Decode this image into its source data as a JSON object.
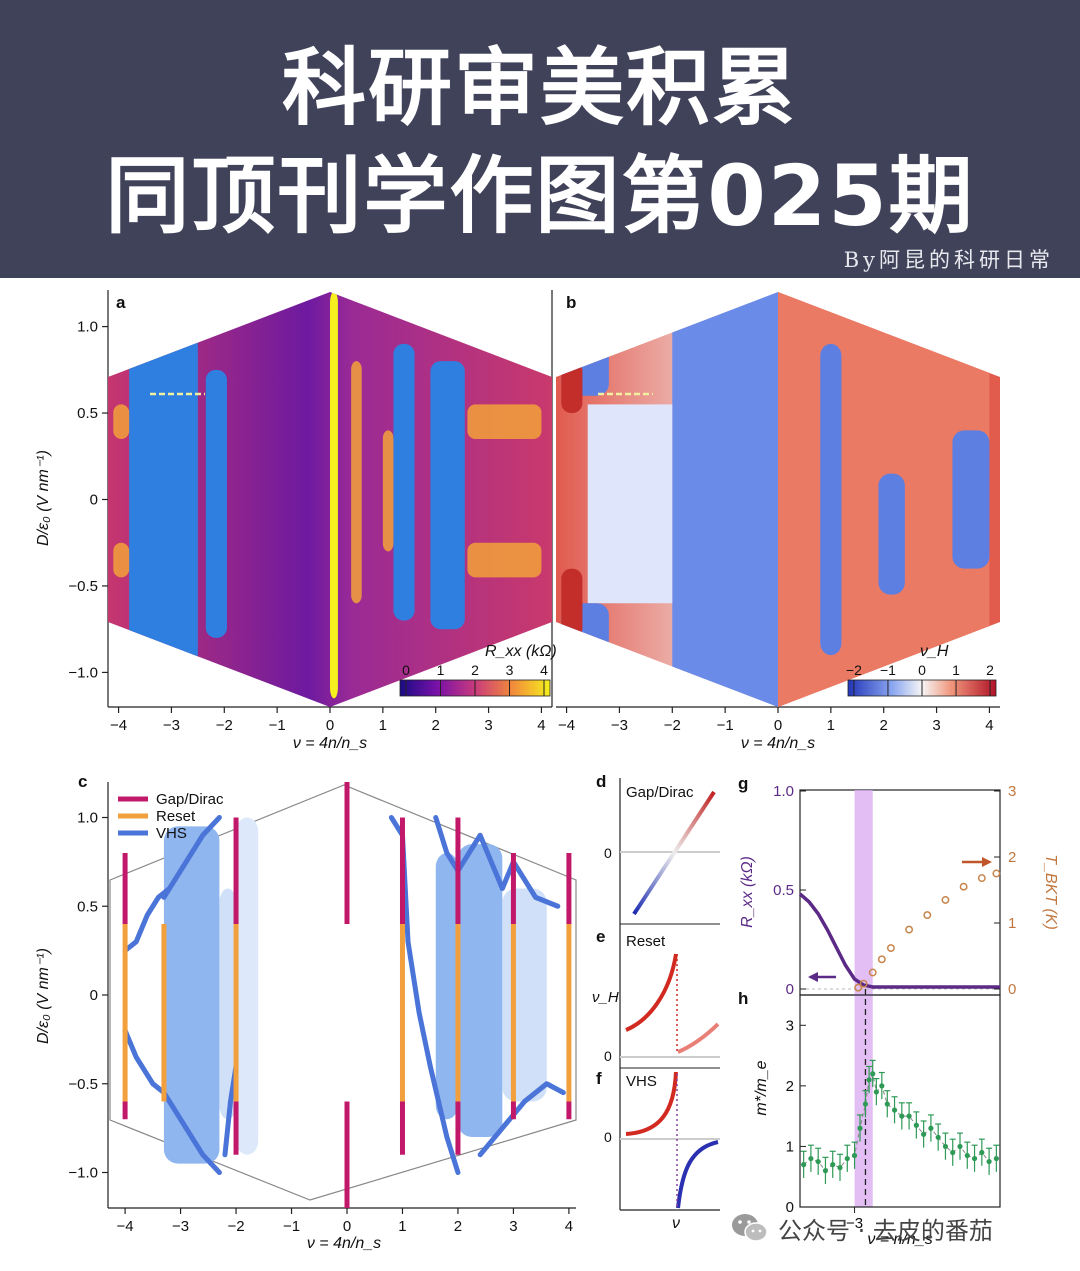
{
  "header": {
    "title_line1": "科研审美积累",
    "title_line2": "同顶刊学作图第025期",
    "byline": "By阿昆的科研日常",
    "bg_color": "#3f4259"
  },
  "watermark": {
    "text": "公众号 · 去皮的番茄",
    "icon": "wechat-icon"
  },
  "chart_data": [
    {
      "panel": "a",
      "type": "heatmap",
      "xlabel": "ν = 4n/n_s",
      "ylabel": "D/ε₀ (V nm⁻¹)",
      "xlim": [
        -4.2,
        4.2
      ],
      "ylim": [
        -1.2,
        1.2
      ],
      "xticks": [
        "−4",
        "−3",
        "−2",
        "−1",
        "0",
        "1",
        "2",
        "3",
        "4"
      ],
      "yticks": [
        "1.0",
        "0.5",
        "0",
        "−0.5",
        "−1.0"
      ],
      "colorbar": {
        "label": "R_xx (kΩ)",
        "ticks": [
          "0",
          "1",
          "2",
          "3",
          "4"
        ],
        "colormap": "plasma"
      },
      "regions": [
        {
          "x0": -3.8,
          "x1": -2.5,
          "y0": -0.95,
          "y1": 0.95,
          "value_kohm": 0.3
        },
        {
          "x0": -2.35,
          "x1": -1.95,
          "y0": -0.8,
          "y1": 0.75,
          "value_kohm": 0.3
        },
        {
          "x0": 1.2,
          "x1": 1.6,
          "y0": -0.7,
          "y1": 0.9,
          "value_kohm": 0.3
        },
        {
          "x0": 1.9,
          "x1": 2.55,
          "y0": -0.75,
          "y1": 0.8,
          "value_kohm": 0.3
        },
        {
          "x0": 0.0,
          "x1": 0.15,
          "y0": -1.15,
          "y1": 1.2,
          "value_kohm": 4.0
        }
      ]
    },
    {
      "panel": "b",
      "type": "heatmap",
      "xlabel": "ν = 4n/n_s",
      "xlim": [
        -4.2,
        4.2
      ],
      "ylim": [
        -1.2,
        1.2
      ],
      "xticks": [
        "−4",
        "−3",
        "−2",
        "−1",
        "0",
        "1",
        "2",
        "3",
        "4"
      ],
      "colorbar": {
        "label": "ν_H",
        "ticks": [
          "−2",
          "−1",
          "0",
          "1",
          "2"
        ],
        "colormap": "coolwarm"
      },
      "regions": [
        {
          "x0": -2.0,
          "x1": 0.0,
          "y0": -1.2,
          "y1": 1.2,
          "value": -1.5
        },
        {
          "x0": -3.6,
          "x1": -2.0,
          "y0": -0.6,
          "y1": 0.55,
          "value": -0.6
        },
        {
          "x0": 0.0,
          "x1": 4.0,
          "y0": -1.2,
          "y1": 1.2,
          "value": 1.4
        }
      ]
    },
    {
      "panel": "c",
      "type": "line",
      "xlabel": "ν = 4n/n_s",
      "ylabel": "D/ε₀ (V nm⁻¹)",
      "xlim": [
        -4.2,
        4.2
      ],
      "ylim": [
        -1.2,
        1.2
      ],
      "xticks": [
        "−4",
        "−3",
        "−2",
        "−1",
        "0",
        "1",
        "2",
        "3",
        "4"
      ],
      "yticks": [
        "1.0",
        "0.5",
        "0",
        "−0.5",
        "−1.0"
      ],
      "legend": [
        "Gap/Dirac",
        "Reset",
        "VHS"
      ],
      "colors": {
        "gap": "#c2186a",
        "reset": "#f2a03d",
        "vhs": "#4a74d8"
      },
      "gap_lines": [
        -4,
        -2,
        0,
        1,
        2,
        3,
        4
      ],
      "reset_lines": [
        -4,
        -3.3,
        -2,
        1,
        2,
        3,
        4
      ]
    },
    {
      "panel": "d",
      "type": "line",
      "title": "Gap/Dirac",
      "ylabel": "",
      "yticks": [
        "0"
      ]
    },
    {
      "panel": "e",
      "type": "line",
      "title": "Reset",
      "ylabel": "ν_H",
      "yticks": [
        "0"
      ]
    },
    {
      "panel": "f",
      "type": "line",
      "title": "VHS",
      "xlabel": "ν",
      "yticks": [
        "0"
      ]
    },
    {
      "panel": "g",
      "type": "line",
      "ylabel_left": "R_xx (kΩ)",
      "ylabel_right": "T_BKT (K)",
      "xlim": [
        -3.3,
        -2.2
      ],
      "ylim_left": [
        0,
        1.0
      ],
      "ylim_right": [
        0,
        3
      ],
      "yticks_left": [
        "0",
        "0.5",
        "1.0"
      ],
      "yticks_right": [
        "0",
        "1",
        "2",
        "3"
      ],
      "highlight_band": [
        -3.0,
        -2.9
      ],
      "series": [
        {
          "name": "R_xx",
          "color": "#5b2a86",
          "x": [
            -3.3,
            -3.25,
            -3.2,
            -3.15,
            -3.1,
            -3.05,
            -3.0,
            -2.95,
            -2.9,
            -2.8,
            -2.6,
            -2.4,
            -2.2
          ],
          "y": [
            0.48,
            0.44,
            0.38,
            0.3,
            0.21,
            0.12,
            0.05,
            0.02,
            0.01,
            0.01,
            0.01,
            0.01,
            0.01
          ]
        },
        {
          "name": "T_BKT",
          "color": "#c8844a",
          "x": [
            -2.98,
            -2.95,
            -2.9,
            -2.85,
            -2.8,
            -2.7,
            -2.6,
            -2.5,
            -2.4,
            -2.3,
            -2.22
          ],
          "y": [
            0.02,
            0.08,
            0.25,
            0.45,
            0.62,
            0.9,
            1.12,
            1.35,
            1.55,
            1.68,
            1.75
          ]
        }
      ]
    },
    {
      "panel": "h",
      "type": "scatter",
      "xlabel": "ν = n/n_s",
      "ylabel": "m*/m_e",
      "xlim": [
        -3.3,
        -2.2
      ],
      "ylim": [
        0,
        3.5
      ],
      "xticks": [
        "−3"
      ],
      "yticks": [
        "0",
        "1",
        "2",
        "3"
      ],
      "series": [
        {
          "name": "m*",
          "color": "#2e9a56",
          "x": [
            -3.28,
            -3.24,
            -3.2,
            -3.16,
            -3.12,
            -3.08,
            -3.04,
            -3.0,
            -2.97,
            -2.94,
            -2.92,
            -2.9,
            -2.88,
            -2.85,
            -2.82,
            -2.78,
            -2.74,
            -2.7,
            -2.66,
            -2.62,
            -2.58,
            -2.54,
            -2.5,
            -2.46,
            -2.42,
            -2.38,
            -2.34,
            -2.3,
            -2.26,
            -2.22
          ],
          "y": [
            0.7,
            0.8,
            0.75,
            0.6,
            0.7,
            0.65,
            0.8,
            0.85,
            1.3,
            1.7,
            2.1,
            2.2,
            1.9,
            2.0,
            1.7,
            1.6,
            1.5,
            1.5,
            1.35,
            1.2,
            1.3,
            1.15,
            1.0,
            0.9,
            1.0,
            0.85,
            0.8,
            0.9,
            0.75,
            0.8
          ]
        }
      ]
    }
  ]
}
